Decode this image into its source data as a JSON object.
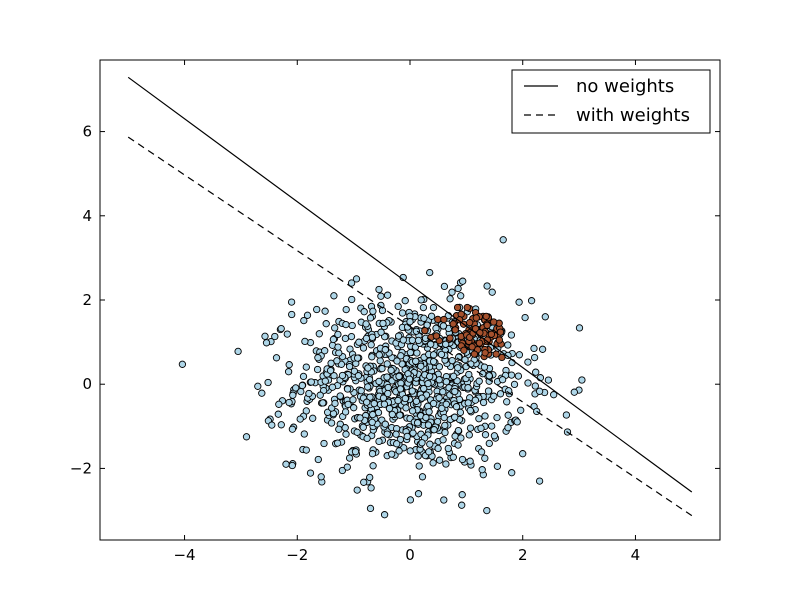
{
  "chart_data": {
    "type": "scatter",
    "title": "",
    "xlabel": "",
    "ylabel": "",
    "xlim": [
      -5.5,
      5.5
    ],
    "ylim": [
      -3.7,
      7.7
    ],
    "x_ticks": [
      -4,
      -2,
      0,
      2,
      4
    ],
    "y_ticks": [
      -2,
      0,
      2,
      4,
      6
    ],
    "x_tick_labels": [
      "−4",
      "−2",
      "0",
      "2",
      "4"
    ],
    "y_tick_labels": [
      "−2",
      "0",
      "2",
      "4",
      "6"
    ],
    "grid": false,
    "legend": {
      "position": "top-right",
      "entries": [
        {
          "label": "no weights",
          "style": "solid"
        },
        {
          "label": "with weights",
          "style": "dashed"
        }
      ]
    },
    "lines": [
      {
        "name": "no weights",
        "style": "solid",
        "color": "#000000",
        "x": [
          -5,
          5
        ],
        "y": [
          7.29,
          -2.56
        ]
      },
      {
        "name": "with weights",
        "style": "dashed",
        "color": "#000000",
        "x": [
          -5,
          5
        ],
        "y": [
          5.87,
          -3.12
        ]
      }
    ],
    "scatter_groups": [
      {
        "class": 0,
        "color": "#aed6e8",
        "count": 1000,
        "distribution": {
          "center": [
            0,
            0
          ],
          "std": [
            1,
            1
          ]
        },
        "extreme_points": [
          [
            -3.05,
            0.78
          ],
          [
            -2.9,
            -1.25
          ],
          [
            -2.2,
            -1.9
          ],
          [
            -2.1,
            1.95
          ],
          [
            -1.35,
            2.1
          ],
          [
            -0.95,
            2.5
          ],
          [
            -0.55,
            2.25
          ],
          [
            0.35,
            2.65
          ],
          [
            0.6,
            -2.75
          ],
          [
            -0.7,
            -2.95
          ],
          [
            -0.45,
            -3.1
          ],
          [
            1.3,
            -2.15
          ],
          [
            2.3,
            -2.3
          ],
          [
            2.55,
            -0.25
          ],
          [
            3.05,
            0.1
          ],
          [
            2.4,
            1.6
          ],
          [
            2.0,
            -1.65
          ],
          [
            -2.3,
            1.3
          ],
          [
            -1.9,
            -1.55
          ],
          [
            0.9,
            2.1
          ],
          [
            1.55,
            -1.95
          ],
          [
            -1.2,
            -2.05
          ],
          [
            2.2,
            0.85
          ],
          [
            -2.7,
            -0.05
          ],
          [
            0.15,
            -2.6
          ]
        ]
      },
      {
        "class": 1,
        "color": "#a5512d",
        "count": 100,
        "distribution": {
          "center": [
            1.2,
            1.2
          ],
          "std": [
            0.3,
            0.3
          ]
        }
      }
    ]
  }
}
